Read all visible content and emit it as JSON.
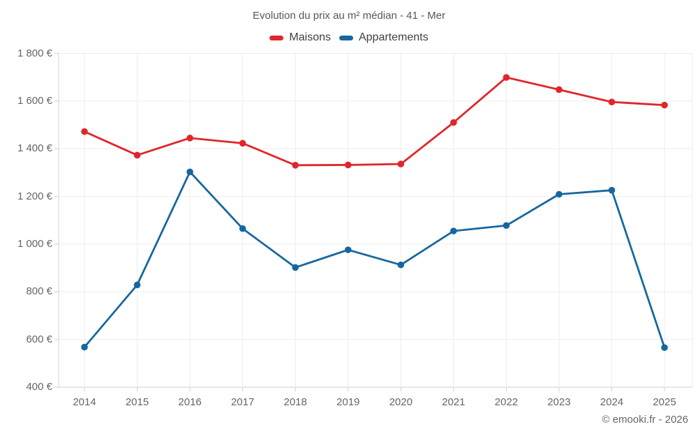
{
  "chart": {
    "title": "Evolution du prix au m² médian - 41 - Mer"
  },
  "legend": [
    {
      "label": "Maisons",
      "color": "#e0262b"
    },
    {
      "label": "Appartements",
      "color": "#17679f"
    }
  ],
  "footer": {
    "credit": "© emooki.fr - 2026"
  },
  "colors": {
    "maisons": "#e0262b",
    "appartements": "#17679f",
    "gridline": "#ededed",
    "axis": "#d0d0d0",
    "title_text": "#575757",
    "tick_text": "#666666"
  },
  "chart_data": {
    "type": "line",
    "title": "Evolution du prix au m² médian - 41 - Mer",
    "categories": [
      "2014",
      "2015",
      "2016",
      "2017",
      "2018",
      "2019",
      "2020",
      "2021",
      "2022",
      "2023",
      "2024",
      "2025"
    ],
    "series": [
      {
        "name": "Maisons",
        "color": "#e0262b",
        "values": [
          1472,
          1373,
          1445,
          1423,
          1331,
          1332,
          1336,
          1510,
          1699,
          1648,
          1596,
          1583
        ]
      },
      {
        "name": "Appartements",
        "color": "#17679f",
        "values": [
          568,
          829,
          1303,
          1065,
          902,
          976,
          913,
          1055,
          1078,
          1209,
          1226,
          566
        ]
      }
    ],
    "xlabel": "",
    "ylabel": "",
    "ylim": [
      400,
      1800
    ],
    "grid": true,
    "legend_position": "top",
    "yticks": [
      {
        "value": 400,
        "label": "400 €"
      },
      {
        "value": 600,
        "label": "600 €"
      },
      {
        "value": 800,
        "label": "800 €"
      },
      {
        "value": 1000,
        "label": "1 000 €"
      },
      {
        "value": 1200,
        "label": "1 200 €"
      },
      {
        "value": 1400,
        "label": "1 400 €"
      },
      {
        "value": 1600,
        "label": "1 600 €"
      },
      {
        "value": 1800,
        "label": "1 800 €"
      }
    ]
  }
}
